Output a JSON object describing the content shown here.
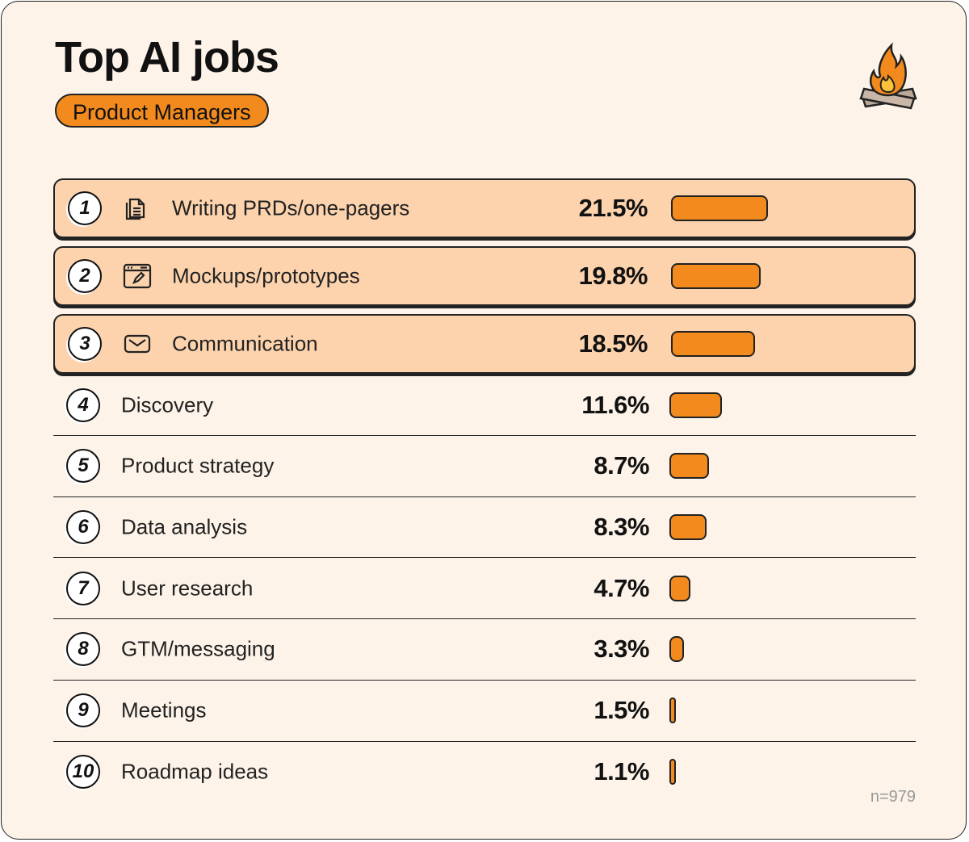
{
  "header": {
    "title": "Top AI jobs",
    "subtitle": "Product Managers"
  },
  "logo": "campfire-icon",
  "colors": {
    "background": "#fdf3e9",
    "highlight": "#fcd3ad",
    "bar": "#f28a1e",
    "text": "#111111"
  },
  "chart_data": {
    "type": "bar",
    "orientation": "horizontal",
    "title": "Top AI jobs",
    "subtitle": "Product Managers",
    "categories": [
      "Writing PRDs/one-pagers",
      "Mockups/prototypes",
      "Communication",
      "Discovery",
      "Product strategy",
      "Data analysis",
      "User research",
      "GTM/messaging",
      "Meetings",
      "Roadmap ideas"
    ],
    "values": [
      21.5,
      19.8,
      18.5,
      11.6,
      8.7,
      8.3,
      4.7,
      3.3,
      1.5,
      1.1
    ],
    "labels": [
      "21.5%",
      "19.8%",
      "18.5%",
      "11.6%",
      "8.7%",
      "8.3%",
      "4.7%",
      "3.3%",
      "1.5%",
      "1.1%"
    ],
    "ranks": [
      "1",
      "2",
      "3",
      "4",
      "5",
      "6",
      "7",
      "8",
      "9",
      "10"
    ],
    "icons": [
      "document-stack-icon",
      "browser-edit-icon",
      "envelope-icon"
    ],
    "unit": "%",
    "highlighted_top": 3,
    "note": "n=979"
  }
}
